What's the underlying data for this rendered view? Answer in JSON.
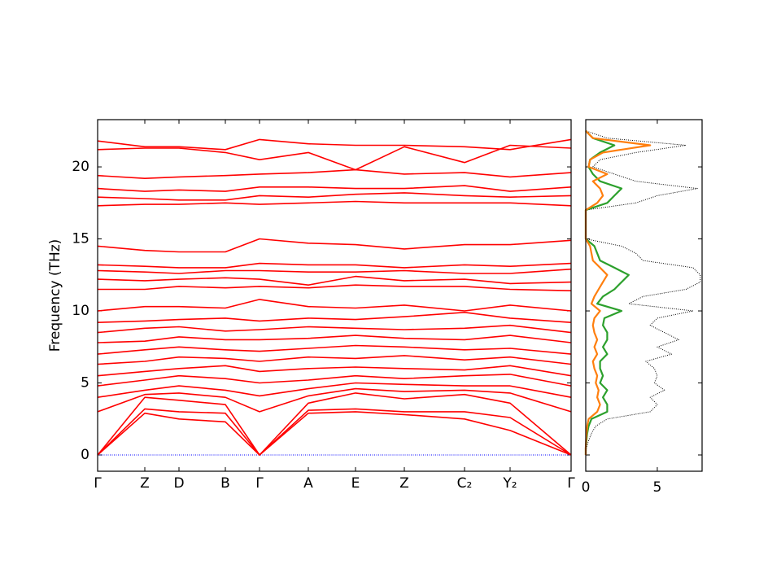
{
  "chart_data": [
    {
      "type": "line",
      "y_label": "Frequency (THz)",
      "x": [
        0,
        58,
        100,
        157,
        199,
        259,
        317,
        377,
        451,
        507,
        582
      ],
      "xlim": [
        0,
        582
      ],
      "xticks": [
        {
          "value": 0,
          "label": "Γ"
        },
        {
          "value": 58,
          "label": "Z"
        },
        {
          "value": 100,
          "label": "D"
        },
        {
          "value": 157,
          "label": "B"
        },
        {
          "value": 199,
          "label": "Γ"
        },
        {
          "value": 259,
          "label": "A"
        },
        {
          "value": 317,
          "label": "E"
        },
        {
          "value": 377,
          "label": "Z"
        },
        {
          "value": 451,
          "label": "C₂"
        },
        {
          "value": 507,
          "label": "Y₂"
        },
        {
          "value": 582,
          "label": "Γ"
        }
      ],
      "ylim": [
        -1.13,
        23.28
      ],
      "yticks": [
        0,
        5,
        10,
        15,
        20
      ],
      "series": [
        {
          "color": "#ff0000",
          "values": [
            0,
            2.9,
            2.5,
            2.3,
            0,
            2.9,
            3.0,
            2.8,
            2.5,
            1.7,
            0
          ]
        },
        {
          "color": "#ff0000",
          "values": [
            0,
            3.2,
            3.0,
            2.9,
            0,
            3.1,
            3.2,
            3.0,
            3.0,
            2.6,
            0
          ]
        },
        {
          "color": "#ff0000",
          "values": [
            0,
            4.0,
            3.8,
            3.5,
            0,
            3.6,
            4.3,
            3.9,
            4.2,
            3.6,
            0
          ]
        },
        {
          "color": "#ff0000",
          "values": [
            3.0,
            4.2,
            4.3,
            4.0,
            3.0,
            4.1,
            4.6,
            4.4,
            4.5,
            4.3,
            3.0
          ]
        },
        {
          "color": "#ff0000",
          "values": [
            4.0,
            4.5,
            4.8,
            4.5,
            4.1,
            4.6,
            5.0,
            4.9,
            4.8,
            4.8,
            4.0
          ]
        },
        {
          "color": "#ff0000",
          "values": [
            4.8,
            5.2,
            5.5,
            5.3,
            5.0,
            5.2,
            5.5,
            5.3,
            5.5,
            5.6,
            4.8
          ]
        },
        {
          "color": "#ff0000",
          "values": [
            5.5,
            5.8,
            6.0,
            6.2,
            5.8,
            6.0,
            6.1,
            6.0,
            5.9,
            6.2,
            5.5
          ]
        },
        {
          "color": "#ff0000",
          "values": [
            6.3,
            6.5,
            6.8,
            6.7,
            6.5,
            6.8,
            6.7,
            6.9,
            6.6,
            6.8,
            6.3
          ]
        },
        {
          "color": "#ff0000",
          "values": [
            7.0,
            7.3,
            7.5,
            7.3,
            7.2,
            7.4,
            7.6,
            7.5,
            7.3,
            7.4,
            7.0
          ]
        },
        {
          "color": "#ff0000",
          "values": [
            7.8,
            7.9,
            8.2,
            8.0,
            8.0,
            8.1,
            8.3,
            8.1,
            8.0,
            8.3,
            7.8
          ]
        },
        {
          "color": "#ff0000",
          "values": [
            8.5,
            8.8,
            8.9,
            8.6,
            8.7,
            8.9,
            8.8,
            8.7,
            8.8,
            9.0,
            8.5
          ]
        },
        {
          "color": "#ff0000",
          "values": [
            9.2,
            9.3,
            9.4,
            9.5,
            9.3,
            9.5,
            9.4,
            9.6,
            9.9,
            9.5,
            9.2
          ]
        },
        {
          "color": "#ff0000",
          "values": [
            10.0,
            10.3,
            10.3,
            10.2,
            10.8,
            10.3,
            10.2,
            10.4,
            10.0,
            10.4,
            10.0
          ]
        },
        {
          "color": "#ff0000",
          "values": [
            11.5,
            11.5,
            11.7,
            11.6,
            11.7,
            11.6,
            11.8,
            11.7,
            11.7,
            11.5,
            11.4
          ]
        },
        {
          "color": "#ff0000",
          "values": [
            12.2,
            12.1,
            12.2,
            12.3,
            12.2,
            11.8,
            12.4,
            12.1,
            12.2,
            11.9,
            12.0
          ]
        },
        {
          "color": "#ff0000",
          "values": [
            12.8,
            12.7,
            12.6,
            12.8,
            12.8,
            12.7,
            12.7,
            12.8,
            12.6,
            12.6,
            12.9
          ]
        },
        {
          "color": "#ff0000",
          "values": [
            13.2,
            13.1,
            13.0,
            13.0,
            13.3,
            13.2,
            13.2,
            13.0,
            13.2,
            13.1,
            13.3
          ]
        },
        {
          "color": "#ff0000",
          "values": [
            14.5,
            14.2,
            14.1,
            14.1,
            15.0,
            14.7,
            14.6,
            14.3,
            14.6,
            14.6,
            14.9
          ]
        },
        {
          "color": "#ff0000",
          "values": [
            17.3,
            17.4,
            17.4,
            17.5,
            17.4,
            17.5,
            17.6,
            17.5,
            17.5,
            17.5,
            17.3
          ]
        },
        {
          "color": "#ff0000",
          "values": [
            17.9,
            17.8,
            17.7,
            17.7,
            18.0,
            17.9,
            18.1,
            18.2,
            18.0,
            17.9,
            18.0
          ]
        },
        {
          "color": "#ff0000",
          "values": [
            18.5,
            18.3,
            18.4,
            18.3,
            18.6,
            18.6,
            18.5,
            18.5,
            18.7,
            18.3,
            18.6
          ]
        },
        {
          "color": "#ff0000",
          "values": [
            19.4,
            19.2,
            19.3,
            19.4,
            19.5,
            19.6,
            19.8,
            19.5,
            19.6,
            19.3,
            19.6
          ]
        },
        {
          "color": "#ff0000",
          "values": [
            21.2,
            21.3,
            21.3,
            21.0,
            20.5,
            21.0,
            19.8,
            21.4,
            20.3,
            21.5,
            21.3
          ]
        },
        {
          "color": "#ff0000",
          "values": [
            21.8,
            21.4,
            21.4,
            21.2,
            21.9,
            21.6,
            21.5,
            21.5,
            21.4,
            21.2,
            21.9
          ]
        }
      ]
    },
    {
      "type": "line",
      "orientation": "horizontal",
      "y": [
        0,
        0.5,
        1,
        1.5,
        2,
        2.5,
        3,
        3.5,
        4,
        4.5,
        5,
        5.5,
        6,
        6.5,
        7,
        7.5,
        8,
        8.5,
        9,
        9.5,
        10,
        10.5,
        11,
        11.5,
        12,
        12.5,
        13,
        13.5,
        14,
        14.5,
        15,
        15.5,
        16,
        16.5,
        17,
        17.5,
        18,
        18.5,
        19,
        19.5,
        20,
        20.5,
        21,
        21.5,
        22,
        22.5
      ],
      "xlim": [
        0,
        8.13
      ],
      "xticks": [
        0,
        5
      ],
      "ylim": [
        -1.13,
        23.28
      ],
      "series": [
        {
          "color": "#000000",
          "linestyle": "dotted",
          "values": [
            0,
            0.05,
            0.2,
            0.4,
            0.7,
            1.5,
            4.5,
            5,
            4.5,
            5.5,
            4.8,
            5,
            4.8,
            4.2,
            6,
            5,
            6.5,
            5.5,
            4.5,
            5,
            7.5,
            3,
            4,
            7,
            8,
            8,
            7.5,
            4,
            3.5,
            2.5,
            0,
            0,
            0,
            0,
            0,
            3.5,
            5,
            7.8,
            3.5,
            2,
            0.5,
            1,
            3.5,
            7,
            1.5,
            0
          ]
        },
        {
          "color": "#2ca02c",
          "linestyle": "solid",
          "values": [
            0,
            0,
            0.05,
            0.1,
            0.2,
            0.4,
            1.5,
            1.5,
            1.2,
            1.5,
            1.0,
            1.2,
            1.0,
            1.0,
            1.5,
            1.2,
            1.5,
            1.5,
            1.2,
            1.3,
            2.5,
            0.8,
            1.2,
            2.0,
            2.5,
            3.0,
            2.0,
            1.0,
            0.8,
            0.6,
            0,
            0,
            0,
            0,
            0,
            1.5,
            2.0,
            2.5,
            1.0,
            0.5,
            0.2,
            0.3,
            1.0,
            2.0,
            0.5,
            0
          ]
        },
        {
          "color": "#ff7f0e",
          "linestyle": "solid",
          "values": [
            0,
            0,
            0.02,
            0.05,
            0.1,
            0.2,
            0.8,
            1.0,
            0.8,
            0.9,
            0.7,
            0.8,
            0.6,
            0.5,
            0.8,
            0.6,
            0.8,
            0.6,
            0.5,
            0.6,
            1.0,
            0.4,
            0.6,
            0.9,
            1.2,
            1.5,
            1.0,
            0.5,
            0.4,
            0.3,
            0,
            0,
            0,
            0,
            0,
            0.8,
            1.2,
            1.0,
            0.5,
            1.5,
            0.2,
            0.3,
            1.2,
            4.5,
            0.5,
            0
          ]
        }
      ]
    }
  ]
}
